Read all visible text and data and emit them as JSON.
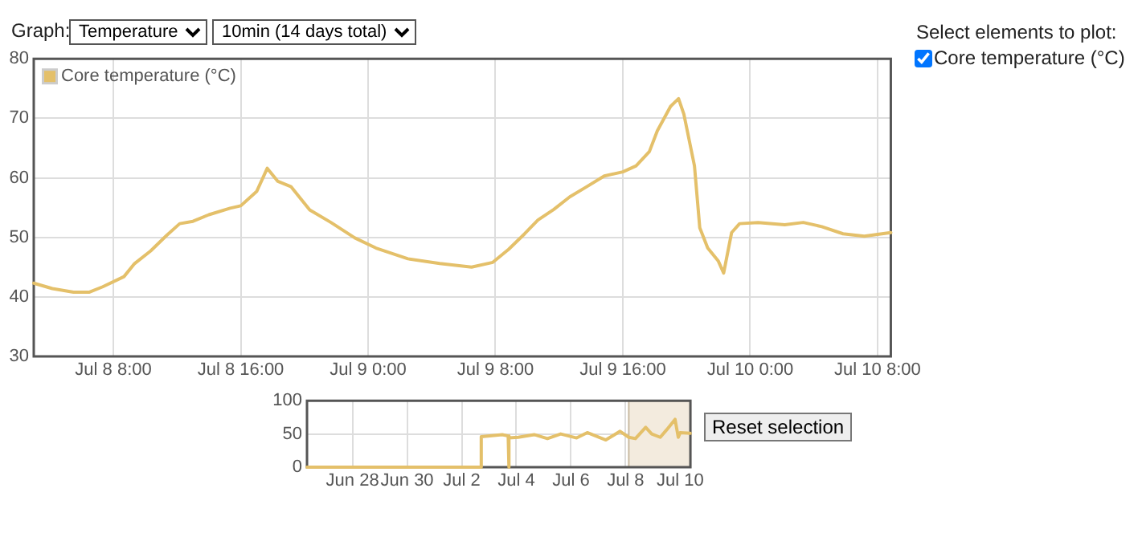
{
  "chart_data": [
    {
      "type": "line",
      "legend": "top left",
      "grid": true,
      "xlim": [
        "--07-08T03:00",
        "--07-10T08:50"
      ],
      "ylim": [
        30,
        80
      ],
      "yticks": [
        30,
        40,
        50,
        60,
        70,
        80
      ],
      "xticks": [
        {
          "value": "--07-08T08:00",
          "label": "Jul 8 8:00"
        },
        {
          "value": "--07-08T16:00",
          "label": "Jul 8 16:00"
        },
        {
          "value": "--07-09T00:00",
          "label": "Jul 9 0:00"
        },
        {
          "value": "--07-09T08:00",
          "label": "Jul 9 8:00"
        },
        {
          "value": "--07-09T16:00",
          "label": "Jul 9 16:00"
        },
        {
          "value": "--07-10T00:00",
          "label": "Jul 10 0:00"
        },
        {
          "value": "--07-10T08:00",
          "label": "Jul 10 8:00"
        }
      ],
      "annotations": [
        "Graph:",
        "Temperature",
        "10min (14 days total)",
        "Select elements to plot:",
        "Core temperature (°C)"
      ],
      "series": [
        {
          "name": "Core temperature (°C)",
          "color": "#e4c06a",
          "x": [
            "--07-08T03:00",
            "--07-08T04:10",
            "--07-08T05:30",
            "--07-08T06:30",
            "--07-08T07:20",
            "--07-08T08:40",
            "--07-08T09:20",
            "--07-08T10:20",
            "--07-08T11:20",
            "--07-08T12:10",
            "--07-08T13:00",
            "--07-08T14:00",
            "--07-08T15:20",
            "--07-08T16:00",
            "--07-08T17:00",
            "--07-08T17:40",
            "--07-08T18:20",
            "--07-08T19:10",
            "--07-08T20:20",
            "--07-08T21:40",
            "--07-08T23:10",
            "--07-09T00:30",
            "--07-09T02:30",
            "--07-09T04:30",
            "--07-09T06:30",
            "--07-09T07:50",
            "--07-09T08:50",
            "--07-09T09:50",
            "--07-09T10:40",
            "--07-09T11:40",
            "--07-09T12:40",
            "--07-09T13:40",
            "--07-09T14:50",
            "--07-09T16:00",
            "--07-09T16:50",
            "--07-09T17:40",
            "--07-09T18:10",
            "--07-09T19:00",
            "--07-09T19:30",
            "--07-09T19:50",
            "--07-09T20:30",
            "--07-09T20:50",
            "--07-09T21:20",
            "--07-09T22:00",
            "--07-09T22:20",
            "--07-09T22:50",
            "--07-09T23:20",
            "--07-10T00:30",
            "--07-10T02:10",
            "--07-10T03:20",
            "--07-10T04:30",
            "--07-10T05:50",
            "--07-10T07:10",
            "--07-10T08:50"
          ],
          "values": [
            42.3,
            41.4,
            40.8,
            40.8,
            41.7,
            43.4,
            45.6,
            47.7,
            50.3,
            52.3,
            52.7,
            53.8,
            54.9,
            55.3,
            57.7,
            61.6,
            59.4,
            58.5,
            54.6,
            52.5,
            49.9,
            48.2,
            46.4,
            45.6,
            45,
            45.8,
            48,
            50.6,
            52.9,
            54.7,
            56.8,
            58.4,
            60.3,
            61,
            62,
            64.4,
            67.9,
            72,
            73.3,
            70.7,
            62,
            51.6,
            48.2,
            46,
            44,
            50.8,
            52.3,
            52.5,
            52.1,
            52.5,
            51.8,
            50.6,
            50.2,
            50.8
          ]
        }
      ]
    },
    {
      "type": "line",
      "grid": true,
      "xlim": [
        "--06-26T08:00",
        "--07-10T09:00"
      ],
      "ylim": [
        0,
        100
      ],
      "yticks": [
        0,
        50,
        100
      ],
      "xticks": [
        {
          "value": "--06-28",
          "label": "Jun 28"
        },
        {
          "value": "--06-30",
          "label": "Jun 30"
        },
        {
          "value": "--07-02",
          "label": "Jul 2"
        },
        {
          "value": "--07-04",
          "label": "Jul 4"
        },
        {
          "value": "--07-06",
          "label": "Jul 6"
        },
        {
          "value": "--07-08",
          "label": "Jul 8"
        },
        {
          "value": "--07-10",
          "label": "Jul 10"
        }
      ],
      "bands": [
        {
          "axis": "x",
          "from": "--07-08T02:50",
          "to": "--07-10T09:00",
          "color": "#f3ebde"
        }
      ],
      "annotations": [
        "Reset selection"
      ],
      "series": [
        {
          "color": "#e4c06a",
          "x": [
            "--06-26T08:00",
            "--07-02T17:00",
            "--07-02T17:10",
            "--07-03T11:40",
            "--07-03T16:50",
            "--07-03T17:00",
            "--07-03T17:40",
            "--07-03T17:50",
            "--07-04T01:40",
            "--07-04T15:40",
            "--07-05T03:20",
            "--07-05T15:00",
            "--07-06T05:00",
            "--07-06T14:20",
            "--07-07T06:40",
            "--07-07T19:10",
            "--07-08T02:50",
            "--07-08T08:40",
            "--07-08T17:40",
            "--07-08T23:00",
            "--07-09T06:30",
            "--07-09T12:00",
            "--07-09T19:30",
            "--07-09T22:20",
            "--07-10T00:00",
            "--07-10T08:50"
          ],
          "values": [
            0,
            0,
            46,
            49,
            47,
            0,
            0,
            44,
            45,
            49,
            43,
            50,
            44,
            52,
            41,
            54,
            45,
            43,
            60,
            50,
            45,
            56,
            72,
            45,
            52,
            51
          ]
        }
      ]
    }
  ]
}
